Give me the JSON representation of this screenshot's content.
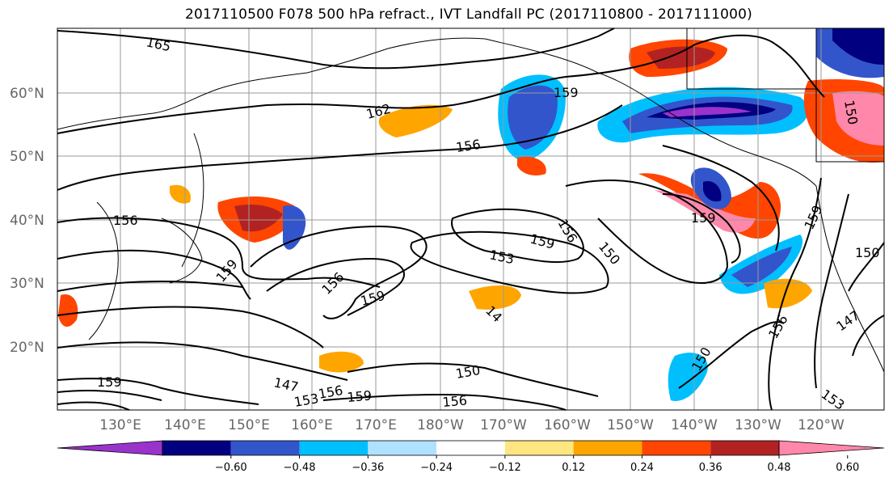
{
  "title": "2017110500 F078 500 hPa refract., IVT Landfall PC (2017110800 - 2017111000)",
  "map": {
    "lat_labels": [
      "60°N",
      "50°N",
      "40°N",
      "30°N",
      "20°N"
    ],
    "lon_labels": [
      "130°E",
      "140°E",
      "150°E",
      "160°E",
      "170°E",
      "180°W",
      "170°W",
      "160°W",
      "150°W",
      "140°W",
      "130°W",
      "120°W"
    ],
    "contour_labels": [
      "165",
      "162",
      "159",
      "156",
      "156",
      "159",
      "153",
      "156",
      "159",
      "150",
      "159",
      "159",
      "156",
      "147",
      "150",
      "156",
      "153",
      "156",
      "159",
      "156",
      "147",
      "153",
      "150",
      "150",
      "14",
      "159",
      "150",
      "159"
    ]
  },
  "colorbar": {
    "ticks": [
      "−0.60",
      "−0.48",
      "−0.36",
      "−0.24",
      "−0.12",
      "0.12",
      "0.24",
      "0.36",
      "0.48",
      "0.60"
    ],
    "colors": [
      "#9933cc",
      "#000080",
      "#3355cc",
      "#00bfff",
      "#b0e2ff",
      "#ffffff",
      "#ffe680",
      "#ffa500",
      "#ff4500",
      "#b22222",
      "#ff88aa"
    ]
  }
}
